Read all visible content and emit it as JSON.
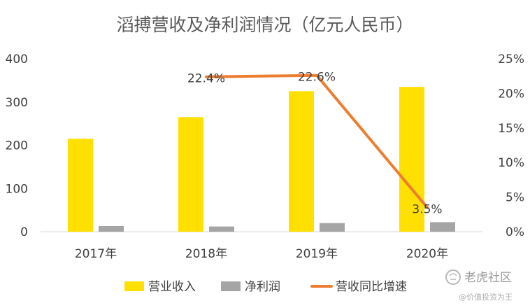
{
  "chart_data": {
    "type": "bar",
    "title": "滔搏营收及净利润情况（亿元人民币）",
    "categories": [
      "2017年",
      "2018年",
      "2019年",
      "2020年"
    ],
    "series": [
      {
        "name": "营业收入",
        "type": "bar",
        "axis": "left",
        "color": "#FFE000",
        "values": [
          215,
          265,
          325,
          335
        ]
      },
      {
        "name": "净利润",
        "type": "bar",
        "axis": "left",
        "color": "#A5A5A5",
        "values": [
          13,
          12,
          20,
          22
        ]
      },
      {
        "name": "营收同比增速",
        "type": "line",
        "axis": "right",
        "color": "#ED7D31",
        "values": [
          null,
          22.4,
          22.6,
          3.5
        ],
        "labels": [
          "",
          "22.4%",
          "22.6%",
          "3.5%"
        ]
      }
    ],
    "y_left": {
      "min": 0,
      "max": 400,
      "ticks": [
        "0",
        "100",
        "200",
        "300",
        "400"
      ]
    },
    "y_right": {
      "min": 0,
      "max": 25,
      "ticks": [
        "0%",
        "5%",
        "10%",
        "15%",
        "20%",
        "25%"
      ]
    },
    "legend_position": "bottom",
    "grid": false
  },
  "watermark": {
    "main": "老虎社区",
    "sub": "@价值投资为王"
  }
}
